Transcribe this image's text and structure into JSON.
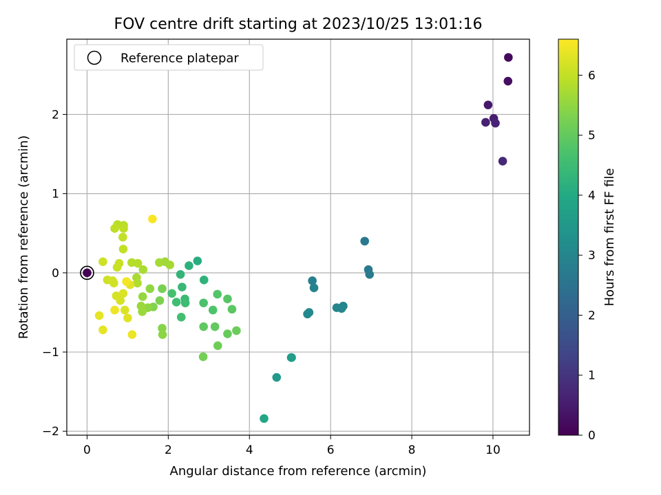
{
  "chart_data": {
    "type": "scatter",
    "title": "FOV centre drift starting at 2023/10/25 13:01:16",
    "xlabel": "Angular distance from reference (arcmin)",
    "ylabel": "Rotation from reference (arcmin)",
    "xlim": [
      -0.5,
      10.9
    ],
    "ylim": [
      -2.05,
      2.95
    ],
    "xticks": [
      0,
      2,
      4,
      6,
      8,
      10
    ],
    "yticks": [
      -2,
      -1,
      0,
      1,
      2
    ],
    "xtick_labels": [
      "0",
      "2",
      "4",
      "6",
      "8",
      "10"
    ],
    "ytick_labels": [
      "−2",
      "−1",
      "0",
      "1",
      "2"
    ],
    "grid": true,
    "legend": {
      "placement": "top-left",
      "label": "Reference platepar"
    },
    "colorbar": {
      "label": "Hours from first FF file",
      "range": [
        0,
        6.6
      ],
      "ticks": [
        0,
        1,
        2,
        3,
        4,
        5,
        6
      ],
      "tick_labels": [
        "0",
        "1",
        "2",
        "3",
        "4",
        "5",
        "6"
      ],
      "colormap": "viridis"
    },
    "reference_point": {
      "x": 0,
      "y": 0
    },
    "series": [
      {
        "points": [
          [
            0.0,
            0.0,
            0.0
          ],
          [
            10.38,
            2.72,
            0.15
          ],
          [
            10.37,
            2.42,
            0.25
          ],
          [
            9.88,
            2.12,
            0.45
          ],
          [
            10.02,
            1.95,
            0.55
          ],
          [
            9.82,
            1.9,
            0.6
          ],
          [
            10.06,
            1.89,
            0.65
          ],
          [
            10.24,
            1.41,
            0.75
          ],
          [
            6.84,
            0.4,
            2.65
          ],
          [
            6.93,
            0.04,
            2.7
          ],
          [
            6.96,
            -0.02,
            2.75
          ],
          [
            5.55,
            -0.1,
            2.85
          ],
          [
            5.59,
            -0.19,
            2.9
          ],
          [
            6.31,
            -0.42,
            2.95
          ],
          [
            6.27,
            -0.45,
            3.0
          ],
          [
            6.15,
            -0.44,
            3.0
          ],
          [
            5.43,
            -0.52,
            3.05
          ],
          [
            5.47,
            -0.5,
            3.1
          ],
          [
            4.67,
            -1.32,
            3.55
          ],
          [
            5.03,
            -1.07,
            3.6
          ],
          [
            5.04,
            -1.07,
            3.65
          ],
          [
            4.36,
            -1.84,
            3.9
          ],
          [
            2.72,
            0.15,
            4.1
          ],
          [
            2.51,
            0.09,
            4.2
          ],
          [
            2.88,
            -0.09,
            4.25
          ],
          [
            2.3,
            -0.02,
            4.3
          ],
          [
            2.34,
            -0.18,
            4.4
          ],
          [
            2.41,
            -0.33,
            4.45
          ],
          [
            2.42,
            -0.38,
            4.5
          ],
          [
            2.2,
            -0.37,
            4.55
          ],
          [
            2.32,
            -0.56,
            4.6
          ],
          [
            2.09,
            -0.26,
            4.65
          ],
          [
            2.87,
            -0.38,
            4.7
          ],
          [
            3.1,
            -0.47,
            4.75
          ],
          [
            3.21,
            -0.27,
            4.8
          ],
          [
            3.46,
            -0.33,
            4.85
          ],
          [
            3.57,
            -0.46,
            4.9
          ],
          [
            2.87,
            -0.68,
            4.95
          ],
          [
            3.15,
            -0.68,
            5.0
          ],
          [
            3.46,
            -0.77,
            5.05
          ],
          [
            3.68,
            -0.73,
            5.1
          ],
          [
            3.22,
            -0.92,
            5.15
          ],
          [
            2.86,
            -1.06,
            5.2
          ],
          [
            1.85,
            -0.2,
            5.25
          ],
          [
            1.79,
            -0.35,
            5.3
          ],
          [
            1.63,
            -0.43,
            5.35
          ],
          [
            1.85,
            -0.7,
            5.4
          ],
          [
            1.86,
            -0.78,
            5.45
          ],
          [
            1.55,
            -0.2,
            5.5
          ],
          [
            1.5,
            -0.44,
            5.5
          ],
          [
            1.37,
            -0.3,
            5.55
          ],
          [
            1.33,
            -0.42,
            5.6
          ],
          [
            1.36,
            -0.49,
            5.6
          ],
          [
            1.92,
            0.14,
            5.65
          ],
          [
            1.78,
            0.13,
            5.7
          ],
          [
            2.04,
            0.1,
            5.7
          ],
          [
            1.38,
            0.04,
            5.75
          ],
          [
            1.22,
            -0.06,
            5.75
          ],
          [
            1.24,
            -0.13,
            5.8
          ],
          [
            1.25,
            0.12,
            5.85
          ],
          [
            1.1,
            0.13,
            5.85
          ],
          [
            0.75,
            0.61,
            5.9
          ],
          [
            0.9,
            0.6,
            5.9
          ],
          [
            0.68,
            0.56,
            5.95
          ],
          [
            0.9,
            0.56,
            5.95
          ],
          [
            0.88,
            0.45,
            6.0
          ],
          [
            0.89,
            0.3,
            6.0
          ],
          [
            0.74,
            0.07,
            6.05
          ],
          [
            0.79,
            0.12,
            6.05
          ],
          [
            0.39,
            0.14,
            6.1
          ],
          [
            0.5,
            -0.09,
            6.1
          ],
          [
            0.63,
            -0.1,
            6.15
          ],
          [
            0.66,
            -0.13,
            6.15
          ],
          [
            0.72,
            -0.29,
            6.2
          ],
          [
            0.82,
            -0.35,
            6.2
          ],
          [
            0.89,
            -0.26,
            6.25
          ],
          [
            0.93,
            -0.47,
            6.25
          ],
          [
            1.0,
            -0.57,
            6.3
          ],
          [
            1.06,
            -0.15,
            6.3
          ],
          [
            0.3,
            -0.54,
            6.35
          ],
          [
            0.39,
            -0.72,
            6.35
          ],
          [
            1.11,
            -0.78,
            6.4
          ],
          [
            0.68,
            -0.47,
            6.45
          ],
          [
            0.97,
            -0.11,
            6.5
          ],
          [
            1.61,
            0.68,
            6.55
          ]
        ]
      }
    ]
  }
}
